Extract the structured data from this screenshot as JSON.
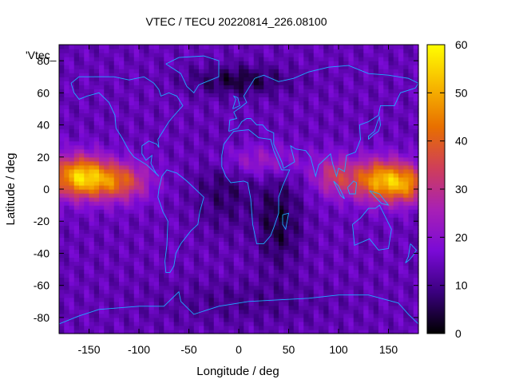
{
  "chart_data": {
    "type": "heatmap",
    "title": "VTEC / TECU 20220814_226.08100",
    "xlabel": "Longitude / deg",
    "ylabel": "Latitude / deg",
    "key_label": "'Vtec_",
    "xlim": [
      -180,
      180
    ],
    "ylim": [
      -90,
      90
    ],
    "x_ticks": [
      -150,
      -100,
      -50,
      0,
      50,
      100,
      150
    ],
    "y_ticks": [
      -80,
      -60,
      -40,
      -20,
      0,
      20,
      40,
      60,
      80
    ],
    "colorbar": {
      "range": [
        0,
        60
      ],
      "ticks": [
        0,
        10,
        20,
        30,
        40,
        50,
        60
      ],
      "palette": [
        "#000000",
        "#3a007e",
        "#7a0ad6",
        "#a820b5",
        "#cf3e5a",
        "#e86f00",
        "#f7b700",
        "#ffff00"
      ]
    },
    "grid": false,
    "overlay": "coastlines",
    "coastline_color": "#1eaaff",
    "features": [
      {
        "region": "Pacific equatorial anomaly",
        "lon": -160,
        "lat": 5,
        "peak_vtec": 55
      },
      {
        "region": "Asia-Indian Ocean equatorial anomaly",
        "lon": 140,
        "lat": 5,
        "peak_vtec": 48
      },
      {
        "region": "Atlantic-Africa depletion",
        "lon": 40,
        "lat": -20,
        "vtec": 3
      },
      {
        "region": "Arctic low",
        "lon": 10,
        "lat": 68,
        "vtec": 4
      }
    ]
  }
}
